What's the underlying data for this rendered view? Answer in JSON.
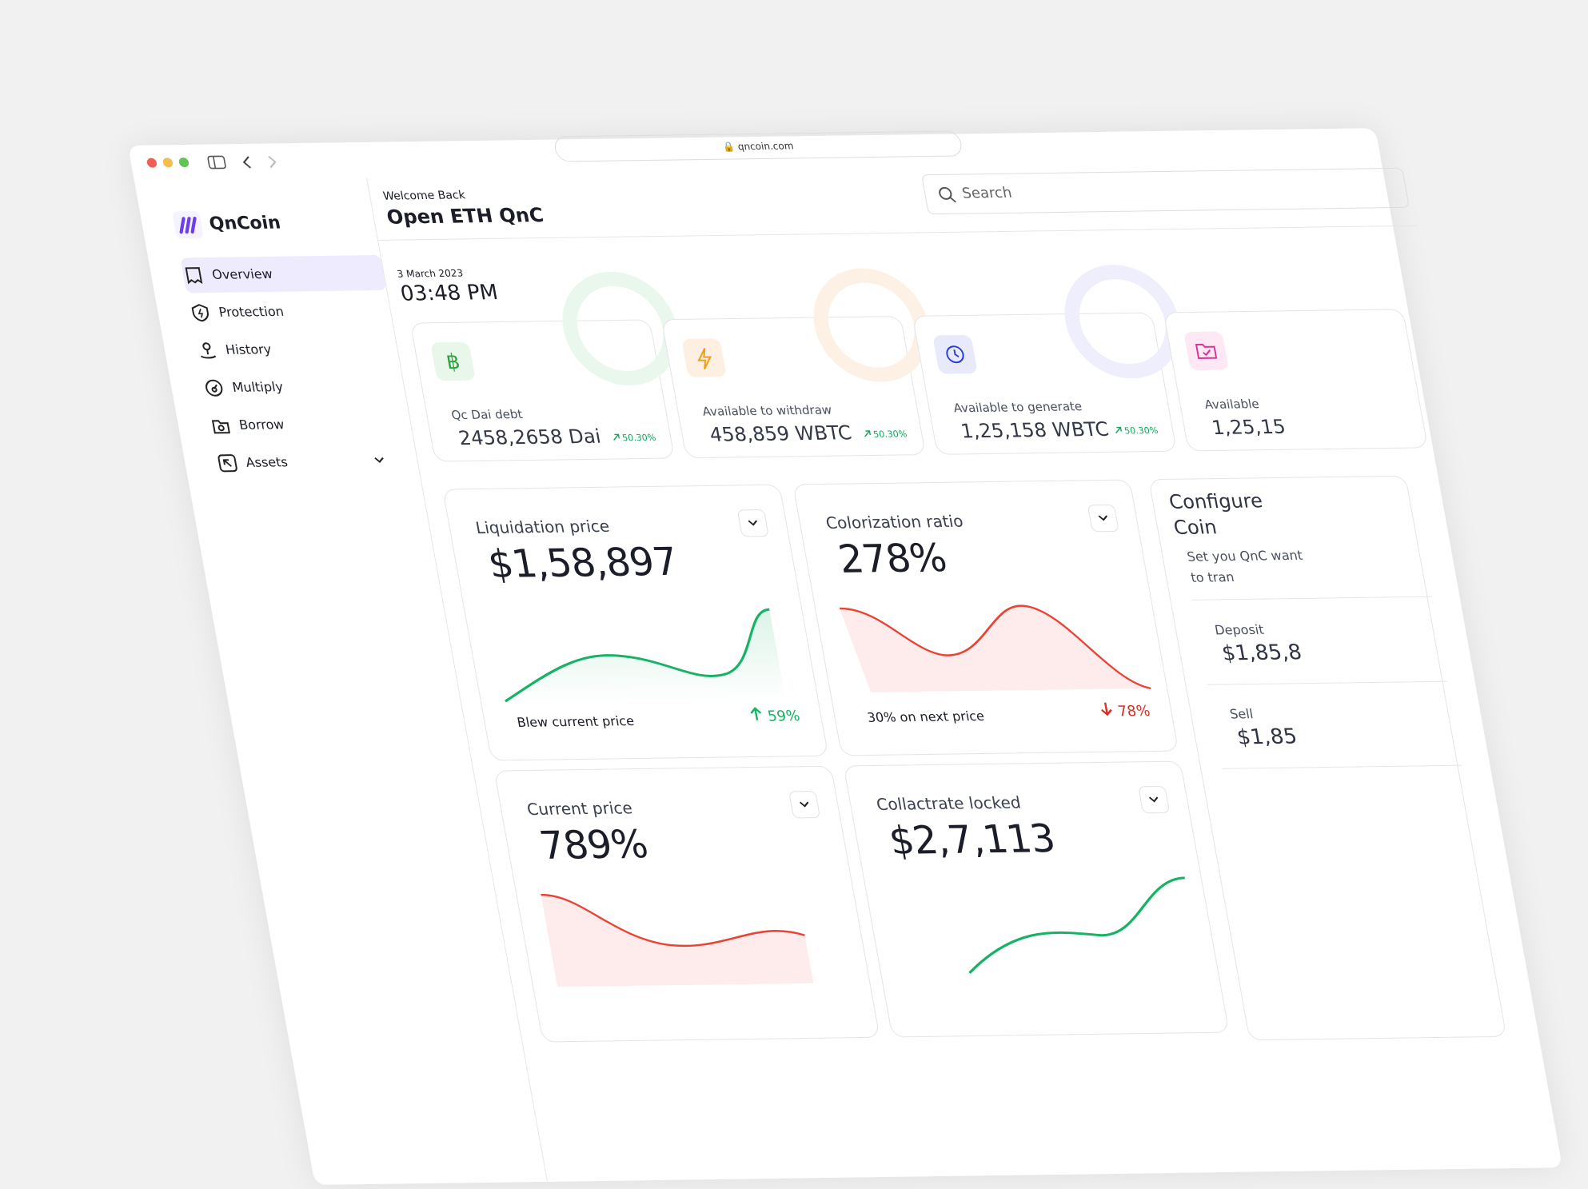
{
  "browser": {
    "url": "qncoin.com"
  },
  "sidebar": {
    "brand": "QnCoin",
    "nav": [
      "Overview",
      "Protection",
      "History",
      "Multiply",
      "Borrow",
      "Assets"
    ]
  },
  "header": {
    "greeting": "Welcome Back",
    "title": "Open ETH QnC",
    "search": "Search"
  },
  "datetime": {
    "date": "3 March 2023",
    "time": "03:48 PM"
  },
  "stats": [
    {
      "label": "Qc Dai debt",
      "value": "2458,2658 Dai",
      "change": "50.30%"
    },
    {
      "label": "Available to withdraw",
      "value": "458,859 WBTC",
      "change": "50.30%"
    },
    {
      "label": "Available to generate",
      "value": "1,25,158 WBTC",
      "change": "50.30%"
    },
    {
      "label": "Available",
      "value": "1,25,15"
    }
  ],
  "metrics": [
    {
      "title": "Liquidation price",
      "value": "$1,58,897",
      "note": "Blew current price",
      "change": "59%",
      "trend": "up"
    },
    {
      "title": "Colorization ratio",
      "value": "278%",
      "note": "30% on next price",
      "change": "78%",
      "trend": "down"
    },
    {
      "title": "Current price",
      "value": "789%"
    },
    {
      "title": "Collactrate locked",
      "value": "$2,7,113"
    }
  ],
  "config": {
    "title": "Configure Coin",
    "description": "Set you QnC want to tran",
    "items": [
      {
        "label": "Deposit",
        "value": "$1,85,8"
      },
      {
        "label": "Sell",
        "value": "$1,85"
      }
    ]
  }
}
